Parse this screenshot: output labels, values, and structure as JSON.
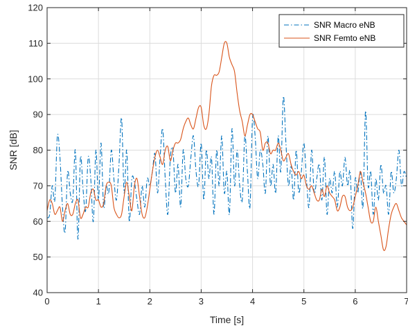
{
  "chart_data": {
    "type": "line",
    "title": "",
    "xlabel": "Time [s]",
    "ylabel": "SNR [dB]",
    "xlim": [
      0,
      7
    ],
    "ylim": [
      40,
      120
    ],
    "xticks": [
      0,
      1,
      2,
      3,
      4,
      5,
      6,
      7
    ],
    "yticks": [
      40,
      50,
      60,
      70,
      80,
      90,
      100,
      110,
      120
    ],
    "grid": true,
    "legend_position": "top-right",
    "series": [
      {
        "name": "SNR Macro eNB",
        "color": "#0072BD",
        "line_style": "dash-dot",
        "x": [
          0.0,
          0.05,
          0.1,
          0.15,
          0.2,
          0.25,
          0.3,
          0.35,
          0.4,
          0.45,
          0.5,
          0.55,
          0.6,
          0.65,
          0.7,
          0.75,
          0.8,
          0.85,
          0.9,
          0.95,
          1.0,
          1.05,
          1.1,
          1.15,
          1.2,
          1.25,
          1.3,
          1.35,
          1.4,
          1.45,
          1.5,
          1.55,
          1.6,
          1.65,
          1.7,
          1.75,
          1.8,
          1.85,
          1.9,
          1.95,
          2.0,
          2.05,
          2.1,
          2.15,
          2.2,
          2.25,
          2.3,
          2.35,
          2.4,
          2.45,
          2.5,
          2.55,
          2.6,
          2.65,
          2.7,
          2.75,
          2.8,
          2.85,
          2.9,
          2.95,
          3.0,
          3.05,
          3.1,
          3.15,
          3.2,
          3.25,
          3.3,
          3.35,
          3.4,
          3.45,
          3.5,
          3.55,
          3.6,
          3.65,
          3.7,
          3.75,
          3.8,
          3.85,
          3.9,
          3.95,
          4.0,
          4.05,
          4.1,
          4.15,
          4.2,
          4.25,
          4.3,
          4.35,
          4.4,
          4.45,
          4.5,
          4.55,
          4.6,
          4.65,
          4.7,
          4.75,
          4.8,
          4.85,
          4.9,
          4.95,
          5.0,
          5.05,
          5.1,
          5.15,
          5.2,
          5.25,
          5.3,
          5.35,
          5.4,
          5.45,
          5.5,
          5.55,
          5.6,
          5.65,
          5.7,
          5.75,
          5.8,
          5.85,
          5.9,
          5.95,
          6.0,
          6.05,
          6.1,
          6.15,
          6.2,
          6.25,
          6.3,
          6.35,
          6.4,
          6.45,
          6.5,
          6.55,
          6.6,
          6.65,
          6.7,
          6.75,
          6.8,
          6.85,
          6.9,
          6.95,
          7.0
        ],
        "y": [
          61,
          62,
          70,
          66,
          84,
          78,
          64,
          57,
          74,
          68,
          66,
          80,
          55,
          78,
          69,
          63,
          78,
          72,
          60,
          80,
          66,
          82,
          64,
          70,
          68,
          80,
          72,
          66,
          76,
          89,
          68,
          80,
          60,
          72,
          71,
          66,
          62,
          70,
          64,
          72,
          70,
          74,
          79,
          68,
          78,
          86,
          72,
          62,
          78,
          80,
          68,
          76,
          64,
          80,
          72,
          70,
          78,
          84,
          74,
          70,
          82,
          66,
          80,
          72,
          78,
          62,
          80,
          70,
          84,
          68,
          74,
          62,
          86,
          70,
          80,
          70,
          66,
          84,
          74,
          64,
          89,
          84,
          72,
          80,
          76,
          68,
          84,
          70,
          76,
          68,
          84,
          74,
          95,
          82,
          70,
          76,
          66,
          80,
          68,
          74,
          82,
          72,
          64,
          80,
          68,
          72,
          76,
          66,
          78,
          62,
          72,
          68,
          74,
          64,
          74,
          70,
          78,
          70,
          74,
          58,
          72,
          68,
          74,
          64,
          91,
          70,
          74,
          62,
          72,
          66,
          76,
          68,
          70,
          62,
          74,
          68,
          72,
          80,
          70,
          74,
          72
        ]
      },
      {
        "name": "SNR Femto eNB",
        "color": "#D95319",
        "line_style": "solid",
        "x": [
          0.0,
          0.05,
          0.1,
          0.15,
          0.2,
          0.25,
          0.3,
          0.35,
          0.4,
          0.45,
          0.5,
          0.55,
          0.6,
          0.65,
          0.7,
          0.75,
          0.8,
          0.85,
          0.9,
          0.95,
          1.0,
          1.05,
          1.1,
          1.15,
          1.2,
          1.25,
          1.3,
          1.35,
          1.4,
          1.45,
          1.5,
          1.55,
          1.6,
          1.65,
          1.7,
          1.75,
          1.8,
          1.85,
          1.9,
          1.95,
          2.0,
          2.05,
          2.1,
          2.15,
          2.2,
          2.25,
          2.3,
          2.35,
          2.4,
          2.45,
          2.5,
          2.55,
          2.6,
          2.65,
          2.7,
          2.75,
          2.8,
          2.85,
          2.9,
          2.95,
          3.0,
          3.05,
          3.1,
          3.15,
          3.2,
          3.25,
          3.3,
          3.35,
          3.4,
          3.45,
          3.5,
          3.55,
          3.6,
          3.65,
          3.7,
          3.75,
          3.8,
          3.85,
          3.9,
          3.95,
          4.0,
          4.05,
          4.1,
          4.15,
          4.2,
          4.25,
          4.3,
          4.35,
          4.4,
          4.45,
          4.5,
          4.55,
          4.6,
          4.65,
          4.7,
          4.75,
          4.8,
          4.85,
          4.9,
          4.95,
          5.0,
          5.05,
          5.1,
          5.15,
          5.2,
          5.25,
          5.3,
          5.35,
          5.4,
          5.45,
          5.5,
          5.55,
          5.6,
          5.65,
          5.7,
          5.75,
          5.8,
          5.85,
          5.9,
          5.95,
          6.0,
          6.05,
          6.1,
          6.15,
          6.2,
          6.25,
          6.3,
          6.35,
          6.4,
          6.45,
          6.5,
          6.55,
          6.6,
          6.65,
          6.7,
          6.75,
          6.8,
          6.85,
          6.9,
          6.95,
          7.0
        ],
        "y": [
          63,
          66,
          65,
          62,
          63,
          64,
          60,
          63,
          65,
          62,
          62,
          65,
          66,
          61,
          62,
          64,
          64,
          68,
          69,
          66,
          66,
          64,
          65,
          70,
          71,
          70,
          64,
          62,
          61,
          62,
          67,
          71,
          67,
          63,
          70,
          72,
          67,
          62,
          61,
          64,
          69,
          74,
          78,
          80,
          78,
          76,
          80,
          81,
          77,
          80,
          82,
          82,
          83,
          86,
          88,
          89,
          87,
          86,
          89,
          92,
          92,
          87,
          86,
          90,
          98,
          101,
          101,
          102,
          106,
          110,
          110,
          106,
          104,
          102,
          96,
          91,
          88,
          84,
          87,
          90,
          90,
          88,
          86,
          85,
          80,
          82,
          82,
          79,
          80,
          80,
          82,
          80,
          77,
          78,
          79,
          76,
          74,
          73,
          74,
          72,
          73,
          70,
          69,
          70,
          68,
          66,
          66,
          69,
          67,
          70,
          68,
          67,
          66,
          63,
          64,
          67,
          67,
          64,
          63,
          64,
          67,
          70,
          74,
          71,
          68,
          64,
          60,
          60,
          64,
          60,
          56,
          52,
          53,
          58,
          62,
          64,
          65,
          63,
          61,
          60,
          59
        ]
      }
    ]
  }
}
